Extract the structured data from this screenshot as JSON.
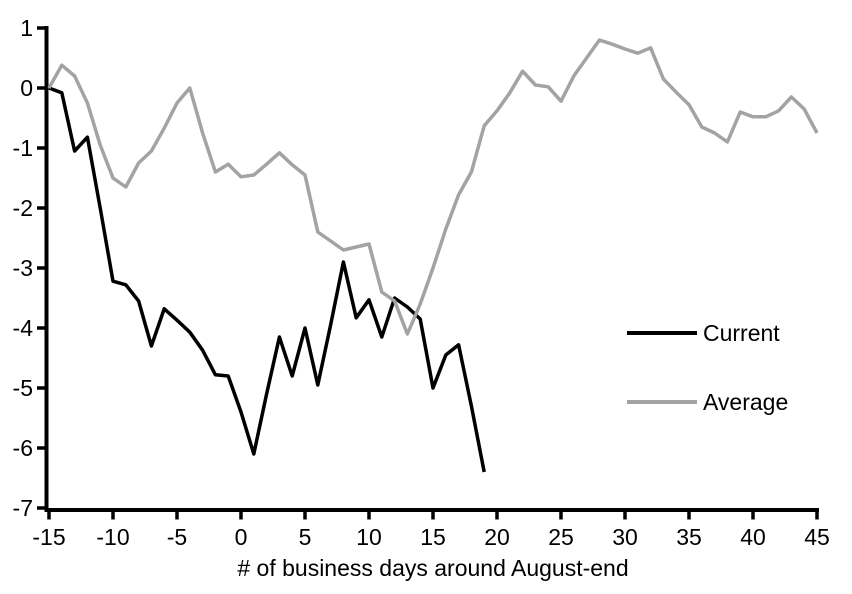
{
  "figure": {
    "background": "#ffffff",
    "axis_color": "#000000"
  },
  "chart_data": {
    "type": "line",
    "title": "",
    "xlabel": "# of business days around August-end",
    "ylabel": "",
    "xlim": [
      -15,
      45
    ],
    "ylim": [
      -7,
      1
    ],
    "x_ticks": [
      -15,
      -10,
      -5,
      0,
      5,
      10,
      15,
      20,
      25,
      30,
      35,
      40,
      45
    ],
    "y_ticks": [
      1,
      0,
      -1,
      -2,
      -3,
      -4,
      -5,
      -6,
      -7
    ],
    "grid": false,
    "legend_position": "right-middle",
    "series": [
      {
        "name": "Current",
        "color": "#000000",
        "x": [
          -15,
          -14,
          -13,
          -12,
          -11,
          -10,
          -9,
          -8,
          -7,
          -6,
          -5,
          -4,
          -3,
          -2,
          -1,
          0,
          1,
          2,
          3,
          4,
          5,
          6,
          7,
          8,
          9,
          10,
          11,
          12,
          13,
          14,
          15,
          16,
          17,
          18,
          19
        ],
        "y": [
          0,
          -0.08,
          -1.05,
          -0.82,
          -2.0,
          -3.22,
          -3.28,
          -3.55,
          -4.3,
          -3.68,
          -3.87,
          -4.07,
          -4.37,
          -4.78,
          -4.8,
          -5.4,
          -6.1,
          -5.1,
          -4.15,
          -4.8,
          -4.0,
          -4.95,
          -3.95,
          -2.9,
          -3.83,
          -3.53,
          -4.15,
          -3.5,
          -3.65,
          -3.85,
          -5.0,
          -4.45,
          -4.28,
          -5.3,
          -6.4
        ]
      },
      {
        "name": "Average",
        "color": "#a3a3a3",
        "x": [
          -15,
          -14,
          -13,
          -12,
          -11,
          -10,
          -9,
          -8,
          -7,
          -6,
          -5,
          -4,
          -3,
          -2,
          -1,
          0,
          1,
          2,
          3,
          4,
          5,
          6,
          7,
          8,
          9,
          10,
          11,
          12,
          13,
          14,
          15,
          16,
          17,
          18,
          19,
          20,
          21,
          22,
          23,
          24,
          25,
          26,
          27,
          28,
          29,
          30,
          31,
          32,
          33,
          34,
          35,
          36,
          37,
          38,
          39,
          40,
          41,
          42,
          43,
          44,
          45
        ],
        "y": [
          0,
          0.38,
          0.2,
          -0.25,
          -0.95,
          -1.5,
          -1.65,
          -1.25,
          -1.05,
          -0.67,
          -0.25,
          0.0,
          -0.75,
          -1.4,
          -1.27,
          -1.48,
          -1.45,
          -1.27,
          -1.08,
          -1.28,
          -1.45,
          -2.4,
          -2.55,
          -2.7,
          -2.65,
          -2.6,
          -3.4,
          -3.55,
          -4.1,
          -3.6,
          -3.0,
          -2.35,
          -1.78,
          -1.4,
          -0.63,
          -0.38,
          -0.08,
          0.28,
          0.05,
          0.02,
          -0.22,
          0.2,
          0.5,
          0.8,
          0.73,
          0.65,
          0.58,
          0.67,
          0.15,
          -0.07,
          -0.28,
          -0.65,
          -0.75,
          -0.9,
          -0.4,
          -0.48,
          -0.48,
          -0.38,
          -0.15,
          -0.35,
          -0.75
        ]
      }
    ]
  }
}
